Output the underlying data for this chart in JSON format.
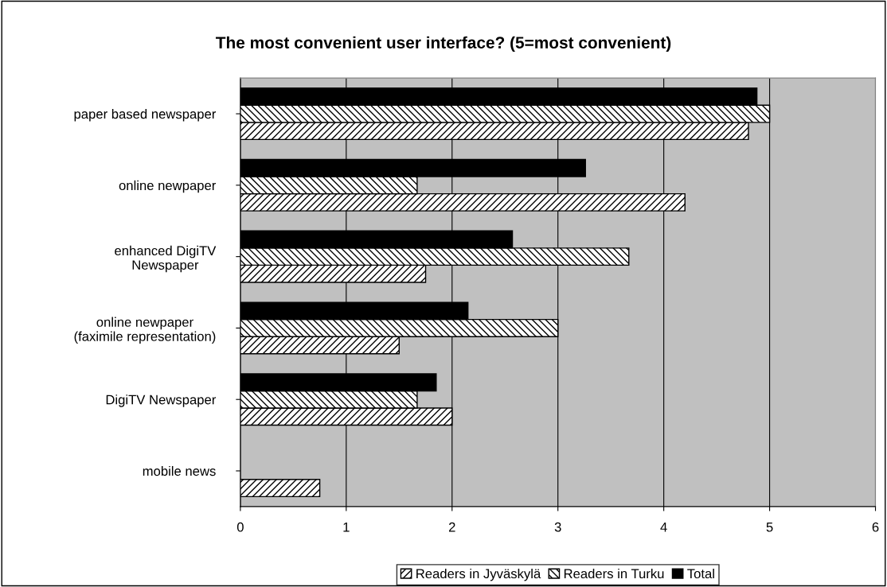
{
  "chart_data": {
    "type": "bar",
    "orientation": "horizontal",
    "title": "The most convenient user interface? (5=most convenient)",
    "categories": [
      "paper based newspaper",
      "online newpaper",
      "enhanced DigiTV\nNewspaper",
      "online newpaper\n(faximile representation)",
      "DigiTV Newspaper",
      "mobile news"
    ],
    "series": [
      {
        "name": "Readers in Jyväskylä",
        "color": "#000000",
        "values": [
          4.8,
          4.2,
          1.75,
          1.5,
          2.0,
          0.75
        ]
      },
      {
        "name": "Readers in Turku",
        "color": "#000000",
        "values": [
          5.0,
          1.67,
          3.67,
          3.0,
          1.67,
          null
        ]
      },
      {
        "name": "Total",
        "color": "#000000",
        "values": [
          4.88,
          3.26,
          2.57,
          2.15,
          1.85,
          null
        ]
      }
    ],
    "xlim": [
      0,
      6
    ],
    "xticks": [
      0,
      1,
      2,
      3,
      4,
      5,
      6
    ],
    "grid": "x",
    "legend": "bottom"
  }
}
